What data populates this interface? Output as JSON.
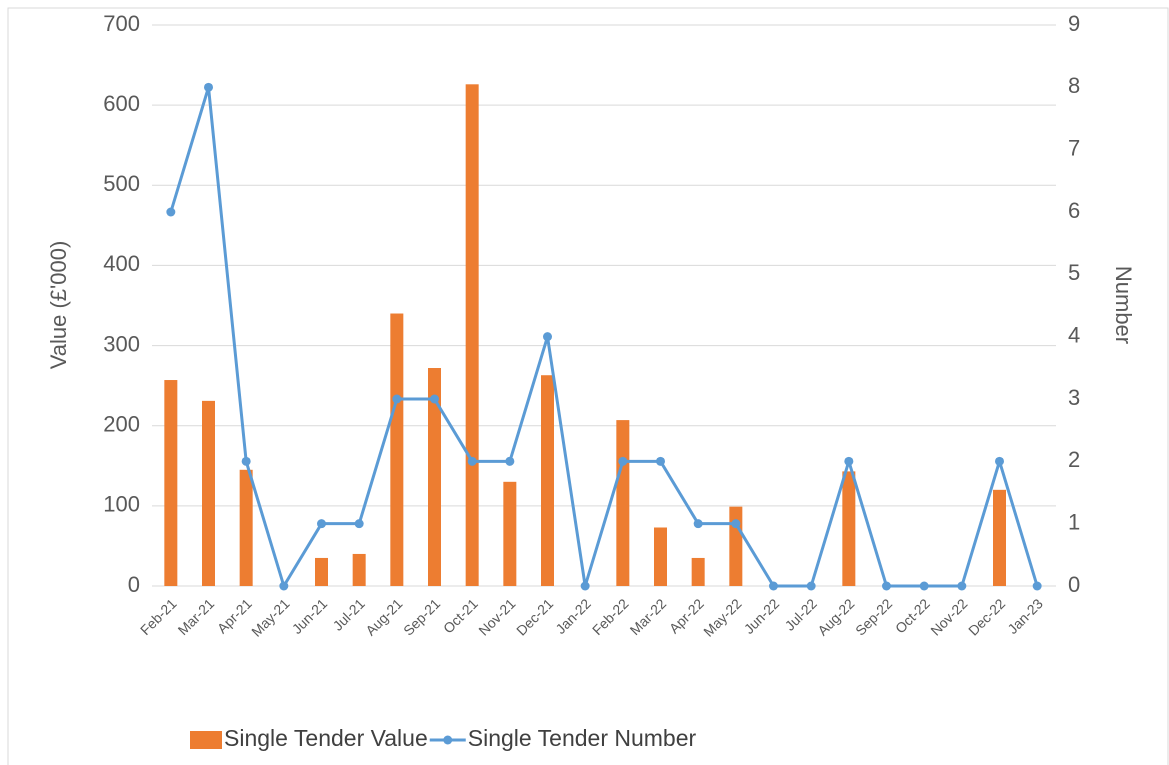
{
  "chart_data": {
    "type": "combo",
    "categories": [
      "Feb-21",
      "Mar-21",
      "Apr-21",
      "May-21",
      "Jun-21",
      "Jul-21",
      "Aug-21",
      "Sep-21",
      "Oct-21",
      "Nov-21",
      "Dec-21",
      "Jan-22",
      "Feb-22",
      "Mar-22",
      "Apr-22",
      "May-22",
      "Jun-22",
      "Jul-22",
      "Aug-22",
      "Sep-22",
      "Oct-22",
      "Nov-22",
      "Dec-22",
      "Jan-23"
    ],
    "series": [
      {
        "name": "Single Tender Value",
        "type": "bar",
        "color": "#ed7d31",
        "values": [
          257,
          231,
          145,
          0,
          35,
          40,
          340,
          272,
          626,
          130,
          263,
          0,
          207,
          73,
          35,
          99,
          0,
          0,
          143,
          0,
          0,
          0,
          120,
          0
        ]
      },
      {
        "name": "Single Tender Number",
        "type": "line",
        "axis": "y2",
        "color": "#5b9bd5",
        "values": [
          6,
          8,
          2,
          0,
          1,
          1,
          3,
          3,
          2,
          2,
          4,
          0,
          2,
          2,
          1,
          1,
          0,
          0,
          2,
          0,
          0,
          0,
          2,
          0
        ]
      }
    ],
    "ylabel": "Value (£'000)",
    "y2label": "Number",
    "ylim": [
      0,
      700
    ],
    "yticks": [
      0,
      100,
      200,
      300,
      400,
      500,
      600,
      700
    ],
    "y2lim": [
      0,
      9
    ],
    "y2ticks": [
      0,
      1,
      2,
      3,
      4,
      5,
      6,
      7,
      8,
      9
    ],
    "grid": true,
    "legend": "bottom"
  }
}
